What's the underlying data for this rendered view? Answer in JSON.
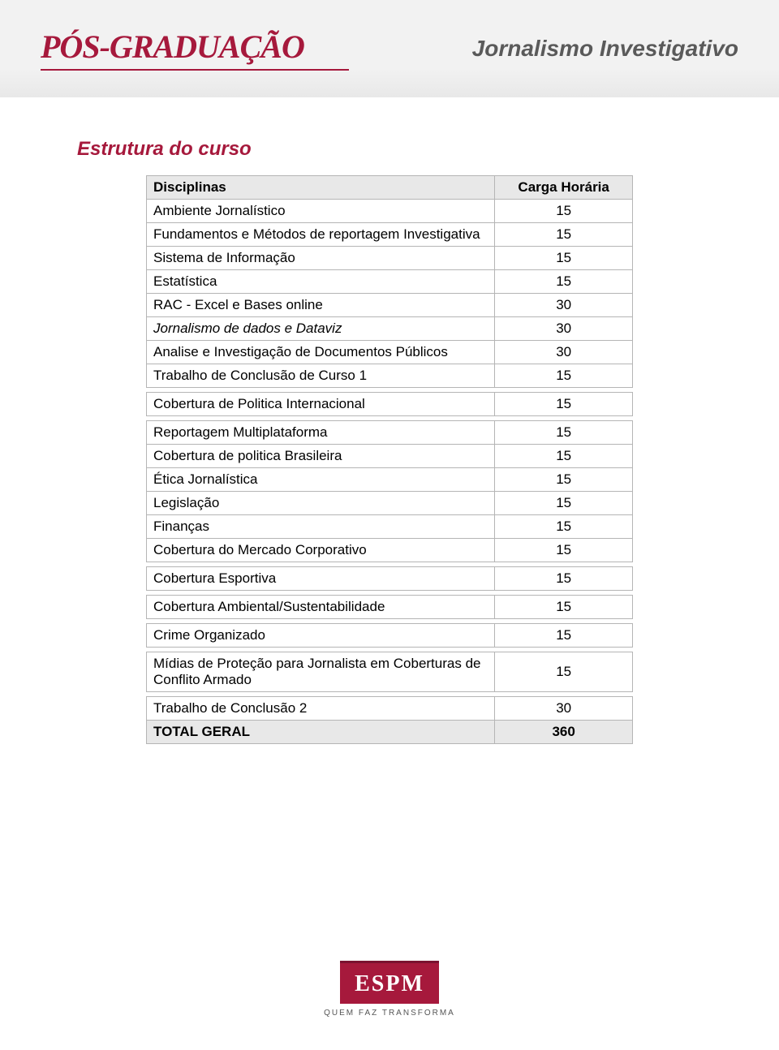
{
  "header": {
    "logo": "PÓS-GRADUAÇÃO",
    "title": "Jornalismo Investigativo"
  },
  "section_heading": "Estrutura do curso",
  "table": {
    "columns": [
      "Disciplinas",
      "Carga Horária"
    ],
    "header_bg": "#e8e8e8",
    "border_color": "#b5b5b5",
    "rows": [
      {
        "name": "Ambiente Jornalístico",
        "value": "15"
      },
      {
        "name": "Fundamentos e Métodos de reportagem Investigativa",
        "value": "15"
      },
      {
        "name": "Sistema de Informação",
        "value": "15"
      },
      {
        "name": "Estatística",
        "value": "15"
      },
      {
        "name": "RAC - Excel e Bases online",
        "value": "30"
      },
      {
        "name": "Jornalismo de dados e Dataviz",
        "value": "30",
        "italic": true
      },
      {
        "name": "Analise e Investigação de Documentos Públicos",
        "value": "30"
      },
      {
        "name": "Trabalho de Conclusão de Curso 1",
        "value": "15",
        "gap_after": true
      },
      {
        "name": "Cobertura de Politica Internacional",
        "value": "15",
        "gap_after": true
      },
      {
        "name": "Reportagem Multiplataforma",
        "value": "15"
      },
      {
        "name": "Cobertura de politica Brasileira",
        "value": "15"
      },
      {
        "name": "Ética Jornalística",
        "value": "15"
      },
      {
        "name": "Legislação",
        "value": "15"
      },
      {
        "name": "Finanças",
        "value": "15"
      },
      {
        "name": "Cobertura do Mercado Corporativo",
        "value": "15",
        "gap_after": true
      },
      {
        "name": "Cobertura Esportiva",
        "value": "15",
        "gap_after": true
      },
      {
        "name": "Cobertura Ambiental/Sustentabilidade",
        "value": "15",
        "gap_after": true
      },
      {
        "name": "Crime Organizado",
        "value": "15",
        "gap_after": true
      },
      {
        "name": "Mídias de Proteção para Jornalista em Coberturas de Conflito Armado",
        "value": "15",
        "gap_after": true
      },
      {
        "name": "Trabalho de Conclusão 2",
        "value": "30"
      },
      {
        "name": "TOTAL GERAL",
        "value": "360",
        "total": true
      }
    ]
  },
  "footer": {
    "brand": "ESPM",
    "tagline": "QUEM FAZ TRANSFORMA"
  },
  "colors": {
    "accent": "#a6193c",
    "header_band": "#f2f2f2",
    "text": "#000000",
    "title_gray": "#5a5a5a"
  }
}
